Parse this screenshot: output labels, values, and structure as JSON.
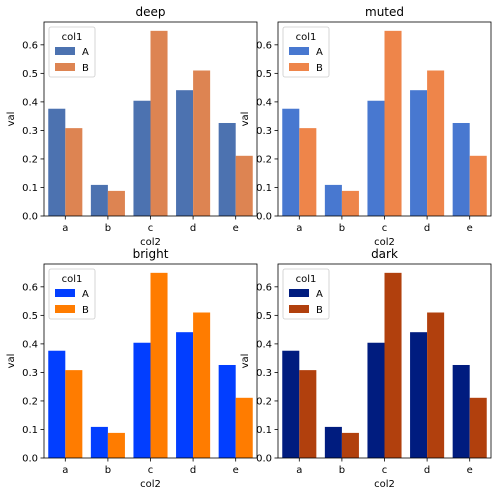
{
  "chart_data": [
    {
      "type": "bar",
      "title": "deep",
      "xlabel": "col2",
      "ylabel": "val",
      "categories": [
        "a",
        "b",
        "c",
        "d",
        "e"
      ],
      "ylim": [
        0,
        0.68
      ],
      "yticks": [
        "0.0",
        "0.1",
        "0.2",
        "0.3",
        "0.4",
        "0.5",
        "0.6"
      ],
      "legend": {
        "title": "col1",
        "placement": "top-left"
      },
      "series": [
        {
          "name": "A",
          "color": "#4c72b0",
          "values": [
            0.376,
            0.109,
            0.404,
            0.441,
            0.326
          ]
        },
        {
          "name": "B",
          "color": "#dd8452",
          "values": [
            0.308,
            0.088,
            0.649,
            0.51,
            0.211
          ]
        }
      ]
    },
    {
      "type": "bar",
      "title": "muted",
      "xlabel": "col2",
      "ylabel": "val",
      "categories": [
        "a",
        "b",
        "c",
        "d",
        "e"
      ],
      "ylim": [
        0,
        0.68
      ],
      "yticks": [
        "0.0",
        "0.1",
        "0.2",
        "0.3",
        "0.4",
        "0.5",
        "0.6"
      ],
      "legend": {
        "title": "col1",
        "placement": "top-left"
      },
      "series": [
        {
          "name": "A",
          "color": "#4878d0",
          "values": [
            0.376,
            0.109,
            0.404,
            0.441,
            0.326
          ]
        },
        {
          "name": "B",
          "color": "#ee854a",
          "values": [
            0.308,
            0.088,
            0.649,
            0.51,
            0.211
          ]
        }
      ]
    },
    {
      "type": "bar",
      "title": "bright",
      "xlabel": "col2",
      "ylabel": "val",
      "categories": [
        "a",
        "b",
        "c",
        "d",
        "e"
      ],
      "ylim": [
        0,
        0.68
      ],
      "yticks": [
        "0.0",
        "0.1",
        "0.2",
        "0.3",
        "0.4",
        "0.5",
        "0.6"
      ],
      "legend": {
        "title": "col1",
        "placement": "top-left"
      },
      "series": [
        {
          "name": "A",
          "color": "#023eff",
          "values": [
            0.376,
            0.109,
            0.404,
            0.441,
            0.326
          ]
        },
        {
          "name": "B",
          "color": "#ff7c00",
          "values": [
            0.308,
            0.088,
            0.649,
            0.51,
            0.211
          ]
        }
      ]
    },
    {
      "type": "bar",
      "title": "dark",
      "xlabel": "col2",
      "ylabel": "val",
      "categories": [
        "a",
        "b",
        "c",
        "d",
        "e"
      ],
      "ylim": [
        0,
        0.68
      ],
      "yticks": [
        "0.0",
        "0.1",
        "0.2",
        "0.3",
        "0.4",
        "0.5",
        "0.6"
      ],
      "legend": {
        "title": "col1",
        "placement": "top-left"
      },
      "series": [
        {
          "name": "A",
          "color": "#001c7f",
          "values": [
            0.376,
            0.109,
            0.404,
            0.441,
            0.326
          ]
        },
        {
          "name": "B",
          "color": "#b1400d",
          "values": [
            0.308,
            0.088,
            0.649,
            0.51,
            0.211
          ]
        }
      ]
    }
  ]
}
